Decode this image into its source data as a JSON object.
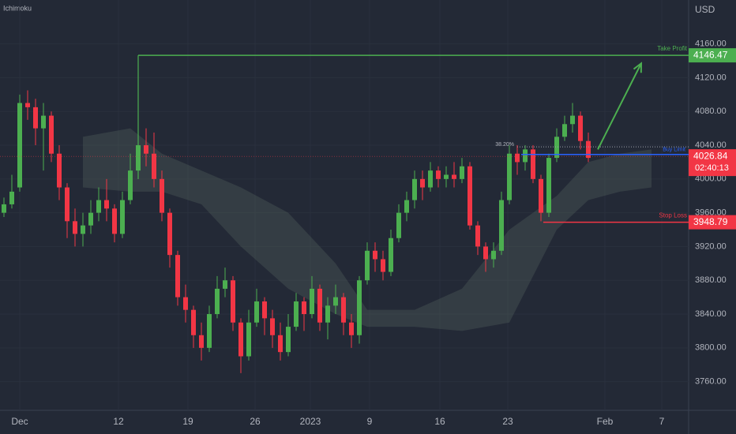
{
  "chart_data": {
    "type": "candlestick",
    "title": "Ichimoku",
    "currency": "USD",
    "xlim": [
      -0.5,
      86.7
    ],
    "xticks": [
      {
        "value": 2,
        "label": "Dec"
      },
      {
        "value": 14.5,
        "label": "12"
      },
      {
        "value": 23.3,
        "label": "19"
      },
      {
        "value": 31.8,
        "label": "26"
      },
      {
        "value": 38.8,
        "label": "2023"
      },
      {
        "value": 46.3,
        "label": "9"
      },
      {
        "value": 55.2,
        "label": "16"
      },
      {
        "value": 63.8,
        "label": "23"
      },
      {
        "value": 76.1,
        "label": "Feb"
      },
      {
        "value": 83.3,
        "label": "7"
      }
    ],
    "ylim": [
      3726,
      4212
    ],
    "yticks": [
      {
        "value": 3760,
        "label": "3760.00"
      },
      {
        "value": 3800,
        "label": "3800.00"
      },
      {
        "value": 3840,
        "label": "3840.00"
      },
      {
        "value": 3880,
        "label": "3880.00"
      },
      {
        "value": 3920,
        "label": "3920.00"
      },
      {
        "value": 3960,
        "label": "3960.00"
      },
      {
        "value": 4000,
        "label": "4000.00"
      },
      {
        "value": 4040,
        "label": "4040.00"
      },
      {
        "value": 4080,
        "label": "4080.00"
      },
      {
        "value": 4120,
        "label": "4120.00"
      },
      {
        "value": 4160,
        "label": "4160.00"
      }
    ],
    "up_color": "#4caf50",
    "down_color": "#f23645",
    "open": [
      3960,
      3970,
      3990,
      4090,
      4085,
      4060,
      4075,
      4030,
      3990,
      3950,
      3935,
      3945,
      3960,
      3975,
      3965,
      3935,
      3975,
      4010,
      4040,
      4030,
      4000,
      3960,
      3910,
      3860,
      3845,
      3815,
      3800,
      3840,
      3870,
      3880,
      3830,
      3790,
      3830,
      3855,
      3835,
      3815,
      3795,
      3825,
      3855,
      3840,
      3870,
      3830,
      3850,
      3860,
      3830,
      3815,
      3880,
      3915,
      3905,
      3890,
      3930,
      3960,
      3975,
      4000,
      3990,
      4010,
      4000,
      4005,
      4000,
      4015,
      3945,
      3920,
      3905,
      3915,
      3975,
      4030,
      4020,
      4035,
      4000,
      3960,
      4025,
      4050,
      4065,
      4075,
      4045
    ],
    "high": [
      3978,
      4005,
      4100,
      4105,
      4095,
      4090,
      4080,
      4040,
      3995,
      3965,
      3960,
      3975,
      3990,
      4000,
      3970,
      3985,
      4030,
      4100,
      4060,
      4055,
      4010,
      3965,
      3915,
      3875,
      3850,
      3830,
      3850,
      3885,
      3895,
      3885,
      3835,
      3845,
      3870,
      3860,
      3845,
      3830,
      3840,
      3865,
      3860,
      3885,
      3875,
      3860,
      3875,
      3865,
      3840,
      3885,
      3925,
      3925,
      3915,
      3940,
      3970,
      3985,
      4010,
      4010,
      4020,
      4015,
      4015,
      4020,
      4025,
      4020,
      3950,
      3925,
      3925,
      3985,
      4040,
      4040,
      4040,
      4040,
      4005,
      4030,
      4060,
      4075,
      4090,
      4080,
      4055
    ],
    "low": [
      3955,
      3965,
      3985,
      4070,
      4040,
      4010,
      4020,
      3975,
      3930,
      3920,
      3920,
      3935,
      3950,
      3950,
      3925,
      3930,
      3970,
      4000,
      4015,
      3990,
      3950,
      3895,
      3850,
      3830,
      3800,
      3785,
      3795,
      3835,
      3860,
      3820,
      3770,
      3785,
      3825,
      3815,
      3800,
      3785,
      3790,
      3820,
      3820,
      3835,
      3820,
      3810,
      3840,
      3815,
      3800,
      3805,
      3875,
      3890,
      3880,
      3885,
      3925,
      3950,
      3965,
      3975,
      3985,
      3990,
      3990,
      3990,
      3995,
      3940,
      3910,
      3890,
      3895,
      3910,
      3970,
      4005,
      4010,
      3995,
      3950,
      3955,
      4020,
      4045,
      4055,
      4035,
      4020
    ],
    "close": [
      3970,
      3985,
      4090,
      4085,
      4060,
      4075,
      4030,
      3990,
      3950,
      3935,
      3945,
      3960,
      3975,
      3965,
      3935,
      3975,
      4010,
      4040,
      4030,
      4000,
      3960,
      3910,
      3860,
      3845,
      3815,
      3800,
      3840,
      3870,
      3880,
      3830,
      3790,
      3830,
      3855,
      3835,
      3815,
      3795,
      3825,
      3855,
      3840,
      3870,
      3830,
      3850,
      3860,
      3830,
      3815,
      3880,
      3915,
      3905,
      3890,
      3930,
      3960,
      3975,
      4000,
      3990,
      4010,
      4000,
      4005,
      4000,
      4015,
      3945,
      3920,
      3905,
      3915,
      3975,
      4030,
      4020,
      4035,
      4000,
      3960,
      4025,
      4050,
      4065,
      4075,
      4045,
      4025
    ],
    "cloud": {
      "color": "#55655f",
      "x": [
        10,
        16,
        20,
        25,
        30,
        36,
        42,
        46,
        52,
        58,
        64,
        70,
        74,
        78,
        82
      ],
      "upper": [
        4050,
        4060,
        4030,
        4010,
        3990,
        3960,
        3900,
        3845,
        3845,
        3870,
        3940,
        3980,
        4020,
        4030,
        4035
      ],
      "lower": [
        3990,
        3985,
        3985,
        3970,
        3920,
        3870,
        3840,
        3825,
        3825,
        3820,
        3830,
        3940,
        3975,
        3985,
        3990
      ]
    },
    "levels": [
      {
        "label": "Take Profit",
        "value": 4146.47,
        "start": 17,
        "color": "#4caf50"
      },
      {
        "label": "Stop Loss",
        "value": 3948.79,
        "start": 68.3,
        "color": "#f23645"
      }
    ],
    "entry": {
      "label": "Buy Limit",
      "value": 4029,
      "start": 65.5,
      "color": "#2962ff"
    },
    "fib": {
      "label": "38.20%",
      "value": 4038,
      "start": 65
    },
    "last_price": {
      "value": 4026.84,
      "countdown": "02:40:13",
      "color": "#f23645"
    },
    "arrow": {
      "x": [
        75.2,
        80.7
      ],
      "y": [
        4035,
        4137
      ],
      "color": "#4caf50"
    }
  }
}
